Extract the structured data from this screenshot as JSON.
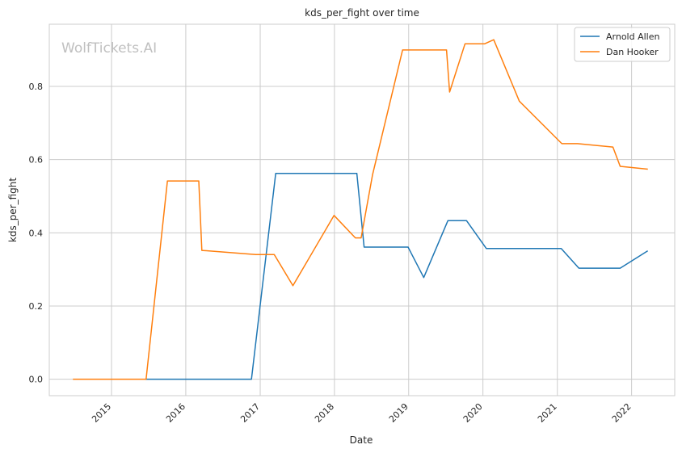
{
  "chart_data": {
    "type": "line",
    "title": "kds_per_fight over time",
    "xlabel": "Date",
    "ylabel": "kds_per_fight",
    "watermark": "WolfTickets.AI",
    "x_ticks": [
      "2015",
      "2016",
      "2017",
      "2018",
      "2019",
      "2020",
      "2021",
      "2022"
    ],
    "y_ticks": [
      "0.0",
      "0.2",
      "0.4",
      "0.6",
      "0.8"
    ],
    "xlim": [
      "2014-03-01",
      "2022-08-01"
    ],
    "ylim": [
      -0.045,
      0.97
    ],
    "grid": true,
    "legend_position": "top-right",
    "series": [
      {
        "name": "Arnold Allen",
        "color": "#1f77b4",
        "points": [
          [
            "2015-06-20",
            0.0
          ],
          [
            "2016-11-19",
            0.0
          ],
          [
            "2017-03-18",
            0.5625
          ],
          [
            "2018-04-21",
            0.5625
          ],
          [
            "2018-05-27",
            0.3611
          ],
          [
            "2018-12-29",
            0.3611
          ],
          [
            "2019-03-16",
            0.2778
          ],
          [
            "2019-07-13",
            0.4333
          ],
          [
            "2019-10-12",
            0.4333
          ],
          [
            "2020-01-18",
            0.3571
          ],
          [
            "2021-01-20",
            0.3571
          ],
          [
            "2021-04-17",
            0.3033
          ],
          [
            "2021-11-06",
            0.3033
          ],
          [
            "2022-03-19",
            0.35
          ]
        ]
      },
      {
        "name": "Dan Hooker",
        "color": "#ff7f0e",
        "points": [
          [
            "2014-06-28",
            0.0
          ],
          [
            "2015-06-20",
            0.0
          ],
          [
            "2015-10-03",
            0.5417
          ],
          [
            "2016-03-05",
            0.5417
          ],
          [
            "2016-03-20",
            0.3519
          ],
          [
            "2016-12-10",
            0.3405
          ],
          [
            "2017-03-11",
            0.3405
          ],
          [
            "2017-06-11",
            0.2556
          ],
          [
            "2017-12-30",
            0.4476
          ],
          [
            "2018-04-14",
            0.3861
          ],
          [
            "2018-05-12",
            0.3861
          ],
          [
            "2018-07-07",
            0.5582
          ],
          [
            "2018-12-02",
            0.8997
          ],
          [
            "2019-07-06",
            0.8997
          ],
          [
            "2019-07-21",
            0.7847
          ],
          [
            "2019-10-05",
            0.9167
          ],
          [
            "2020-01-10",
            0.9167
          ],
          [
            "2020-02-23",
            0.9276
          ],
          [
            "2020-06-28",
            0.7597
          ],
          [
            "2021-01-23",
            0.6437
          ],
          [
            "2021-04-10",
            0.6437
          ],
          [
            "2021-10-01",
            0.6343
          ],
          [
            "2021-11-06",
            0.5817
          ],
          [
            "2022-03-19",
            0.5741
          ]
        ]
      }
    ]
  }
}
